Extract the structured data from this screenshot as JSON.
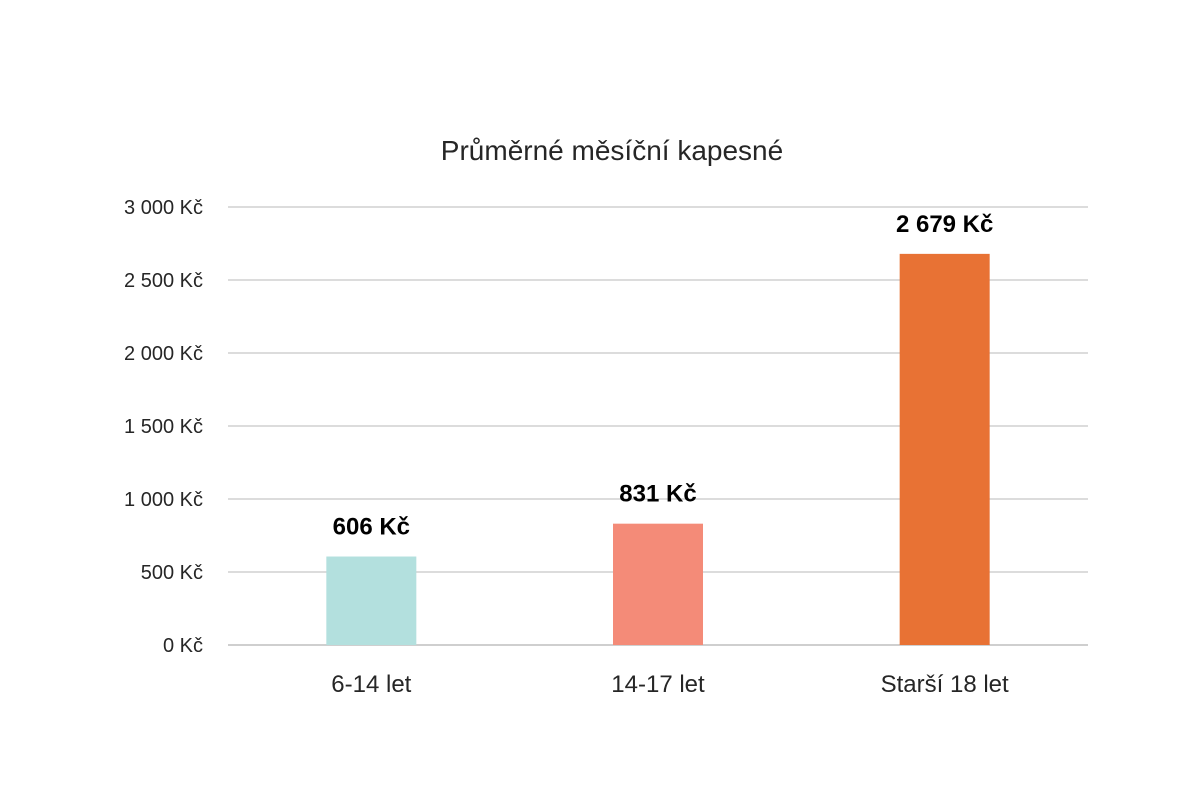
{
  "chart_data": {
    "type": "bar",
    "title": "Průměrné měsíční kapesné",
    "xlabel": "",
    "ylabel": "",
    "categories": [
      "6-14 let",
      "14-17 let",
      "Starší 18 let"
    ],
    "values": [
      606,
      831,
      2679
    ],
    "data_labels": [
      "606 Kč",
      "831 Kč",
      "2 679 Kč"
    ],
    "bar_colors": [
      "#b3e0de",
      "#f48b78",
      "#e87234"
    ],
    "ylim": [
      0,
      3000
    ],
    "y_ticks": [
      0,
      500,
      1000,
      1500,
      2000,
      2500,
      3000
    ],
    "y_tick_labels": [
      "0 Kč",
      "500 Kč",
      "1 000 Kč",
      "1 500 Kč",
      "2 000 Kč",
      "2 500 Kč",
      "3 000 Kč"
    ],
    "grid": true,
    "legend": "none"
  }
}
